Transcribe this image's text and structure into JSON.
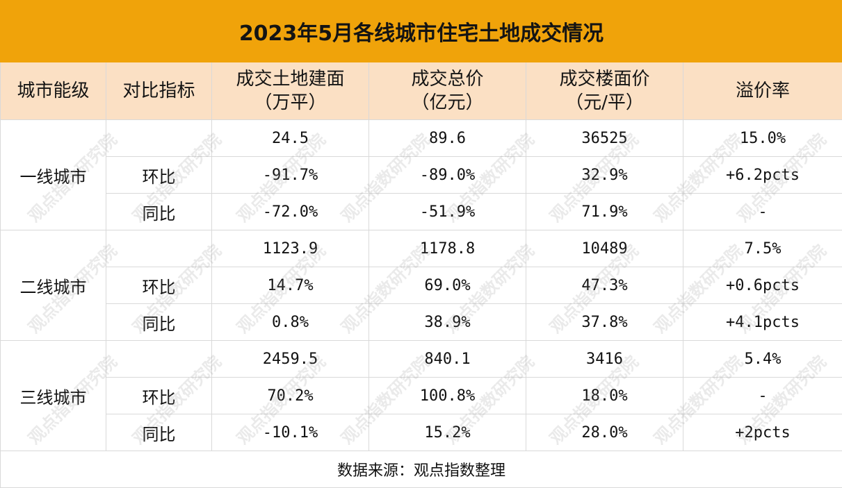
{
  "title": "2023年5月各线城市住宅土地成交情况",
  "headers": {
    "tier": "城市能级",
    "metric": "对比指标",
    "area_line1": "成交土地建面",
    "area_line2": "（万平）",
    "total_line1": "成交总价",
    "total_line2": "（亿元）",
    "price_line1": "成交楼面价",
    "price_line2": "（元/平）",
    "premium": "溢价率"
  },
  "groups": [
    {
      "tier": "一线城市",
      "rows": [
        {
          "metric": "",
          "area": "24.5",
          "total": "89.6",
          "price": "36525",
          "premium": "15.0%"
        },
        {
          "metric": "环比",
          "area": "-91.7%",
          "total": "-89.0%",
          "price": "32.9%",
          "premium": "+6.2pcts"
        },
        {
          "metric": "同比",
          "area": "-72.0%",
          "total": "-51.9%",
          "price": "71.9%",
          "premium": "-"
        }
      ]
    },
    {
      "tier": "二线城市",
      "rows": [
        {
          "metric": "",
          "area": "1123.9",
          "total": "1178.8",
          "price": "10489",
          "premium": "7.5%"
        },
        {
          "metric": "环比",
          "area": "14.7%",
          "total": "69.0%",
          "price": "47.3%",
          "premium": "+0.6pcts"
        },
        {
          "metric": "同比",
          "area": "0.8%",
          "total": "38.9%",
          "price": "37.8%",
          "premium": "+4.1pcts"
        }
      ]
    },
    {
      "tier": "三线城市",
      "rows": [
        {
          "metric": "",
          "area": "2459.5",
          "total": "840.1",
          "price": "3416",
          "premium": "5.4%"
        },
        {
          "metric": "环比",
          "area": "70.2%",
          "total": "100.8%",
          "price": "18.0%",
          "premium": "-"
        },
        {
          "metric": "同比",
          "area": "-10.1%",
          "total": "15.2%",
          "price": "28.0%",
          "premium": "+2pcts"
        }
      ]
    }
  ],
  "footer": "数据来源：观点指数整理",
  "watermark": "观点指数研究院",
  "colors": {
    "title_bg": "#f0a30a",
    "header_bg": "#fbe0c4",
    "grid": "#d9d9d9"
  }
}
